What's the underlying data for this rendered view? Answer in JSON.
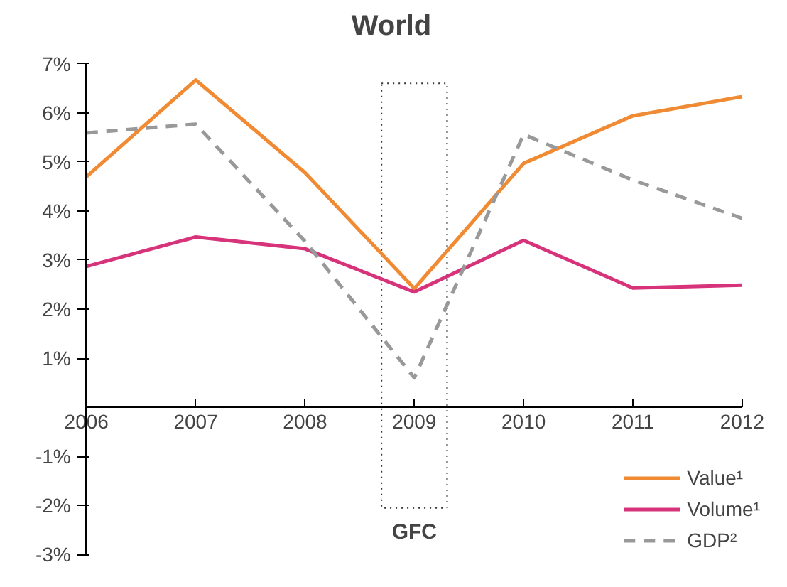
{
  "chart_data": {
    "type": "line",
    "title": "World",
    "x": [
      2006,
      2007,
      2008,
      2009,
      2010,
      2011,
      2012
    ],
    "series": [
      {
        "name": "Value¹",
        "color": "#f08a33",
        "values": [
          4.7,
          6.67,
          4.78,
          2.42,
          4.97,
          5.94,
          6.33
        ]
      },
      {
        "name": "Volume¹",
        "color": "#d6337a",
        "values": [
          2.87,
          3.47,
          3.23,
          2.35,
          3.4,
          2.43,
          2.49
        ]
      },
      {
        "name": "GDP²",
        "color": "#999999",
        "line_style": "dashed",
        "values": [
          5.59,
          5.77,
          3.38,
          0.6,
          5.56,
          4.63,
          3.85
        ]
      }
    ],
    "xlim": [
      2006,
      2012
    ],
    "xticks": [
      2006,
      2007,
      2008,
      2009,
      2010,
      2011,
      2012
    ],
    "ylim": [
      -3,
      7
    ],
    "yticks": [
      {
        "value": 7,
        "label": "7%"
      },
      {
        "value": 6,
        "label": "6%"
      },
      {
        "value": 5,
        "label": "5%"
      },
      {
        "value": 4,
        "label": "4%"
      },
      {
        "value": 3,
        "label": "3%"
      },
      {
        "value": 2,
        "label": "2%"
      },
      {
        "value": 1,
        "label": "1%"
      },
      {
        "value": -1,
        "label": "-1%"
      },
      {
        "value": -2,
        "label": "-2%"
      },
      {
        "value": -3,
        "label": "-3%"
      }
    ],
    "bands": [
      {
        "axis": "x",
        "from": 2008.7,
        "to": 2009.3,
        "label": "GFC"
      }
    ],
    "grid": false,
    "legend": "bottom right",
    "line_style": "solid",
    "marker": "none"
  }
}
